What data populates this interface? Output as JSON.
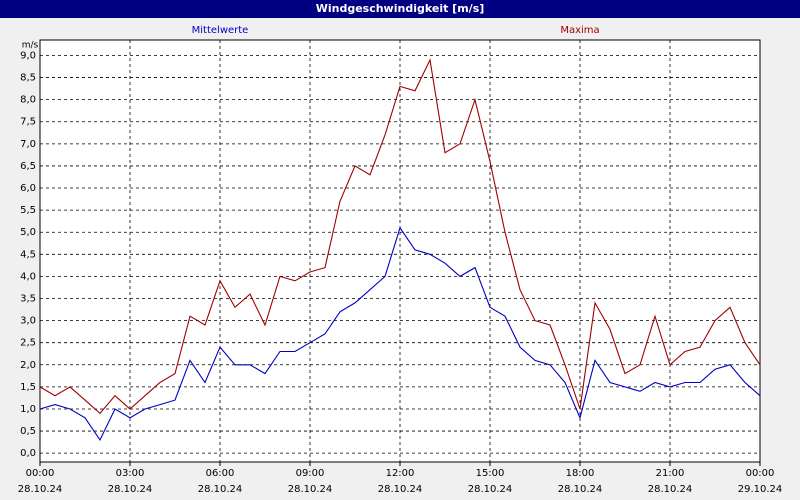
{
  "chart_data": {
    "type": "line",
    "title": "Windgeschwindigkeit [m/s]",
    "y_unit": "m/s",
    "x": [
      0,
      0.5,
      1,
      1.5,
      2,
      2.5,
      3,
      3.5,
      4,
      4.5,
      5,
      5.5,
      6,
      6.5,
      7,
      7.5,
      8,
      8.5,
      9,
      9.5,
      10,
      10.5,
      11,
      11.5,
      12,
      12.5,
      13,
      13.5,
      14,
      14.5,
      15,
      15.5,
      16,
      16.5,
      17,
      17.5,
      18,
      18.5,
      19,
      19.5,
      20,
      20.5,
      21,
      21.5,
      22,
      22.5,
      23,
      23.5,
      24
    ],
    "series": [
      {
        "name": "Mittelwerte",
        "color": "#0000c0",
        "values": [
          1.0,
          1.1,
          1.0,
          0.8,
          0.3,
          1.0,
          0.8,
          1.0,
          1.1,
          1.2,
          2.1,
          1.6,
          2.4,
          2.0,
          2.0,
          1.8,
          2.3,
          2.3,
          2.5,
          2.7,
          3.2,
          3.4,
          3.7,
          4.0,
          5.1,
          4.6,
          4.5,
          4.3,
          4.0,
          4.2,
          3.3,
          3.1,
          2.4,
          2.1,
          2.0,
          1.6,
          0.8,
          2.1,
          1.6,
          1.5,
          1.4,
          1.6,
          1.5,
          1.6,
          1.6,
          1.9,
          2.0,
          1.6,
          1.3
        ]
      },
      {
        "name": "Maxima",
        "color": "#a00000",
        "values": [
          1.5,
          1.3,
          1.5,
          1.2,
          0.9,
          1.3,
          1.0,
          1.3,
          1.6,
          1.8,
          3.1,
          2.9,
          3.9,
          3.3,
          3.6,
          2.9,
          4.0,
          3.9,
          4.1,
          4.2,
          5.7,
          6.5,
          6.3,
          7.2,
          8.3,
          8.2,
          8.9,
          6.8,
          7.0,
          8.0,
          6.6,
          5.0,
          3.7,
          3.0,
          2.9,
          2.0,
          1.0,
          3.4,
          2.8,
          1.8,
          2.0,
          3.1,
          2.0,
          2.3,
          2.4,
          3.0,
          3.3,
          2.5,
          2.0
        ]
      }
    ],
    "xlim": [
      0,
      24
    ],
    "xticks": [
      {
        "value": 0,
        "label": "00:00",
        "date": "28.10.24"
      },
      {
        "value": 3,
        "label": "03:00",
        "date": "28.10.24"
      },
      {
        "value": 6,
        "label": "06:00",
        "date": "28.10.24"
      },
      {
        "value": 9,
        "label": "09:00",
        "date": "28.10.24"
      },
      {
        "value": 12,
        "label": "12:00",
        "date": "28.10.24"
      },
      {
        "value": 15,
        "label": "15:00",
        "date": "28.10.24"
      },
      {
        "value": 18,
        "label": "18:00",
        "date": "28.10.24"
      },
      {
        "value": 21,
        "label": "21:00",
        "date": "28.10.24"
      },
      {
        "value": 24,
        "label": "00:00",
        "date": "29.10.24"
      }
    ],
    "ylim": [
      -0.2,
      9.35
    ],
    "yticks": [
      {
        "value": 0,
        "label": "0,0"
      },
      {
        "value": 0.5,
        "label": "0,5"
      },
      {
        "value": 1,
        "label": "1,0"
      },
      {
        "value": 1.5,
        "label": "1,5"
      },
      {
        "value": 2,
        "label": "2,0"
      },
      {
        "value": 2.5,
        "label": "2,5"
      },
      {
        "value": 3,
        "label": "3,0"
      },
      {
        "value": 3.5,
        "label": "3,5"
      },
      {
        "value": 4,
        "label": "4,0"
      },
      {
        "value": 4.5,
        "label": "4,5"
      },
      {
        "value": 5,
        "label": "5,0"
      },
      {
        "value": 5.5,
        "label": "5,5"
      },
      {
        "value": 6,
        "label": "6,0"
      },
      {
        "value": 6.5,
        "label": "6,5"
      },
      {
        "value": 7,
        "label": "7,0"
      },
      {
        "value": 7.5,
        "label": "7,5"
      },
      {
        "value": 8,
        "label": "8,0"
      },
      {
        "value": 8.5,
        "label": "8,5"
      },
      {
        "value": 9,
        "label": "9,0"
      }
    ],
    "grid": true
  }
}
